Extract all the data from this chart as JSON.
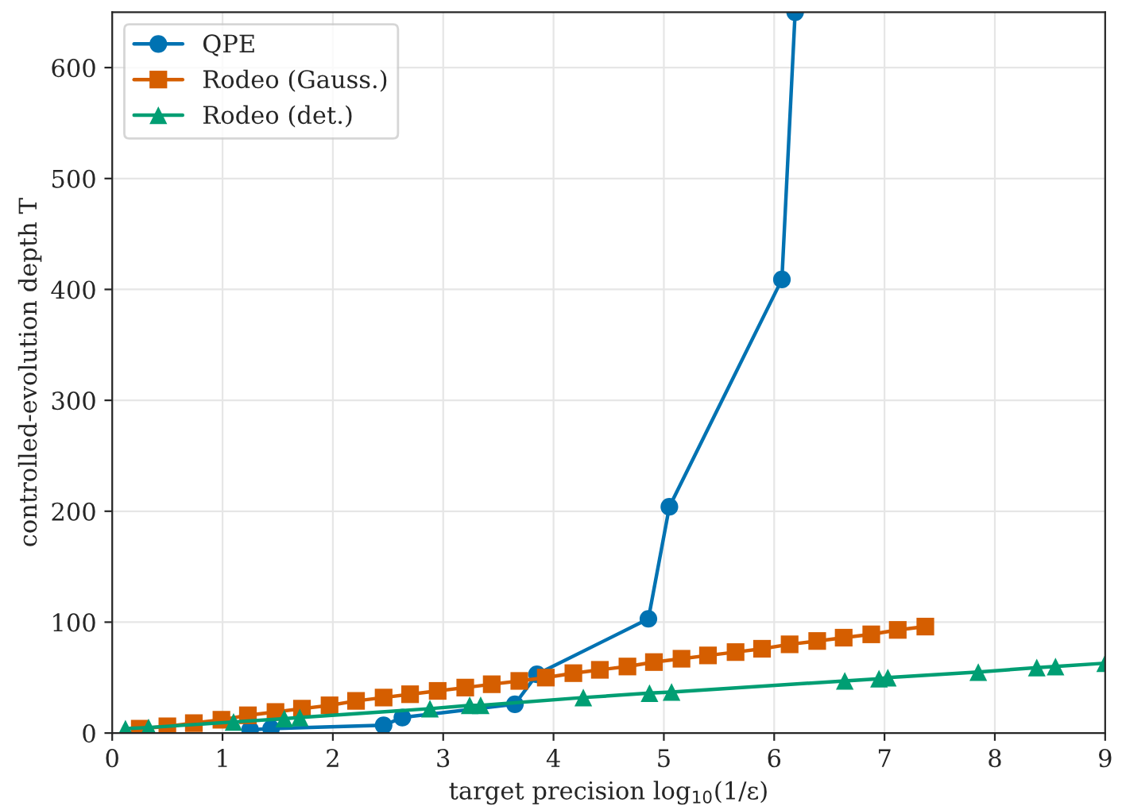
{
  "chart_data": {
    "type": "line",
    "xlabel": "target precision log$_{10}$(1/ε)",
    "ylabel": "controlled-evolution depth T",
    "xlim": [
      0,
      9
    ],
    "xticks": [
      0,
      1,
      2,
      3,
      4,
      5,
      6,
      7,
      8,
      9
    ],
    "ylim": [
      0,
      650
    ],
    "yticks": [
      0,
      100,
      200,
      300,
      400,
      500,
      600
    ],
    "grid": true,
    "legend": "top left",
    "line_style": "solid",
    "series": [
      {
        "name": "QPE",
        "color": "#0072b2",
        "marker": "circle",
        "x": [
          1.25,
          1.44,
          2.46,
          2.63,
          3.65,
          3.85,
          4.86,
          5.05,
          6.07,
          6.19
        ],
        "values": [
          3,
          4,
          7,
          14,
          26,
          53,
          103,
          204,
          409,
          650
        ]
      },
      {
        "name": "Rodeo (Gauss.)",
        "color": "#d55e00",
        "marker": "square",
        "x": [
          0.25,
          0.5,
          0.74,
          0.99,
          1.23,
          1.48,
          1.72,
          1.97,
          2.21,
          2.46,
          2.7,
          2.95,
          3.2,
          3.44,
          3.69,
          3.93,
          4.18,
          4.42,
          4.67,
          4.91,
          5.16,
          5.4,
          5.65,
          5.89,
          6.14,
          6.39,
          6.63,
          6.88,
          7.12,
          7.37
        ],
        "values": [
          4,
          6,
          9,
          12,
          16,
          19,
          22,
          25,
          29,
          32,
          35,
          38,
          41,
          44,
          47,
          50,
          54,
          57,
          60,
          64,
          67,
          70,
          73,
          76,
          80,
          83,
          86,
          89,
          93,
          96
        ]
      },
      {
        "name": "Rodeo (det.)",
        "color": "#009e73",
        "marker": "triangle",
        "x": [
          0.12,
          0.33,
          1.1,
          1.56,
          1.7,
          2.88,
          3.24,
          3.34,
          4.27,
          4.87,
          5.07,
          6.64,
          6.95,
          7.03,
          7.85,
          8.38,
          8.55,
          9.0
        ],
        "values": [
          4,
          5,
          10,
          13,
          14,
          22,
          25,
          25,
          32,
          36,
          37,
          47,
          49,
          50,
          55,
          59,
          60,
          63
        ]
      }
    ]
  }
}
